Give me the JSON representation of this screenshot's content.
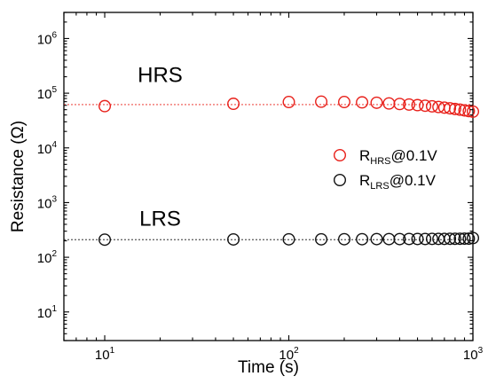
{
  "chart_data": {
    "type": "scatter",
    "xscale": "log",
    "yscale": "log",
    "xlim": [
      6,
      1000
    ],
    "ylim": [
      3,
      3000000
    ],
    "xlabel": "Time (s)",
    "ylabel": "Resistance (Ω)",
    "xticks": [
      {
        "value": 10,
        "base": "10",
        "exp": "1"
      },
      {
        "value": 100,
        "base": "10",
        "exp": "2"
      },
      {
        "value": 1000,
        "base": "10",
        "exp": "3"
      }
    ],
    "yticks": [
      {
        "value": 10,
        "base": "10",
        "exp": "1"
      },
      {
        "value": 100,
        "base": "10",
        "exp": "2"
      },
      {
        "value": 1000,
        "base": "10",
        "exp": "3"
      },
      {
        "value": 10000,
        "base": "10",
        "exp": "4"
      },
      {
        "value": 100000,
        "base": "10",
        "exp": "5"
      },
      {
        "value": 1000000,
        "base": "10",
        "exp": "6"
      }
    ],
    "annotations": [
      {
        "text": "HRS",
        "x": 20,
        "y": 160000
      },
      {
        "text": "LRS",
        "x": 20,
        "y": 380
      }
    ],
    "legend": {
      "position": "right"
    },
    "series": [
      {
        "name_main": "R",
        "name_sub": "HRS",
        "name_suffix": "@0.1V",
        "color": "#e8201a",
        "reference_level": 62000,
        "x": [
          10,
          50,
          100,
          150,
          200,
          250,
          300,
          350,
          400,
          450,
          500,
          550,
          600,
          650,
          700,
          750,
          800,
          850,
          900,
          950,
          1000
        ],
        "y": [
          58000,
          64000,
          69000,
          70000,
          69000,
          68000,
          67000,
          65000,
          63500,
          62000,
          60500,
          59000,
          57500,
          56000,
          54500,
          53000,
          51500,
          50000,
          48500,
          47000,
          46000
        ]
      },
      {
        "name_main": "R",
        "name_sub": "LRS",
        "name_suffix": "@0.1V",
        "color": "#111111",
        "reference_level": 210,
        "x": [
          10,
          50,
          100,
          150,
          200,
          250,
          300,
          350,
          400,
          450,
          500,
          550,
          600,
          650,
          700,
          750,
          800,
          850,
          900,
          950,
          1000
        ],
        "y": [
          210,
          212,
          213,
          213,
          214,
          214,
          215,
          215,
          215,
          216,
          216,
          216,
          217,
          217,
          217,
          218,
          218,
          218,
          219,
          219,
          225
        ]
      }
    ]
  }
}
